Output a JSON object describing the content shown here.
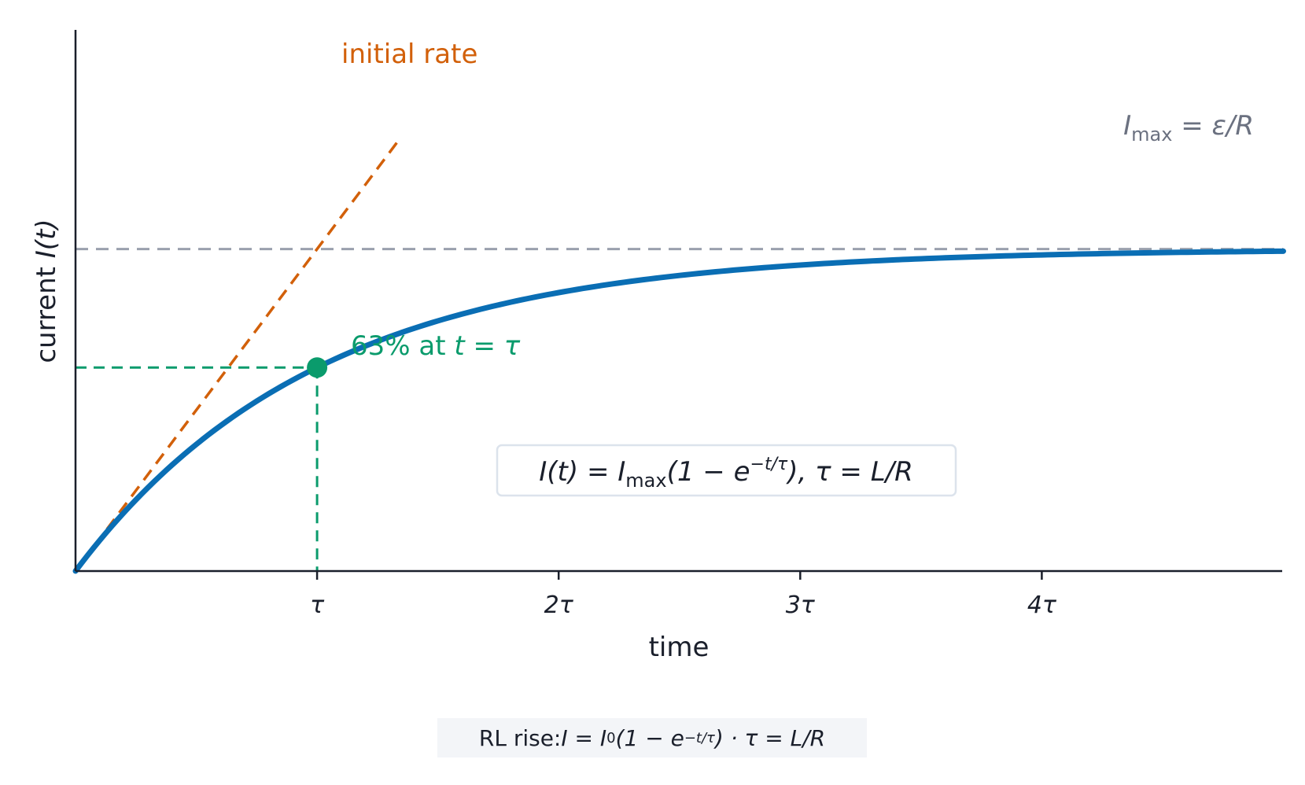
{
  "chart_data": {
    "type": "line",
    "title": "",
    "xlabel": "time",
    "ylabel": "current I(t)",
    "xlim": [
      0,
      5
    ],
    "ylim": [
      0,
      1.7
    ],
    "x_ticks": [
      1,
      2,
      3,
      4
    ],
    "x_tick_labels": [
      "τ",
      "2τ",
      "3τ",
      "4τ"
    ],
    "grid": false,
    "series": [
      {
        "kind": "curve",
        "formula": "1 - exp(-t)",
        "color": "#0a6eb4",
        "samples_x": [
          0,
          0.25,
          0.5,
          0.75,
          1,
          1.5,
          2,
          2.5,
          3,
          3.5,
          4,
          4.5,
          5
        ],
        "samples_y": [
          0,
          0.221,
          0.393,
          0.528,
          0.632,
          0.777,
          0.865,
          0.918,
          0.95,
          0.97,
          0.982,
          0.989,
          0.993
        ]
      },
      {
        "kind": "tangent",
        "label": "initial rate",
        "slope": 1,
        "x_range": [
          0.13,
          1.33
        ],
        "color": "#d2600a"
      },
      {
        "kind": "asymptote",
        "y": 1,
        "color": "#9aa0ad"
      },
      {
        "kind": "marker",
        "x": 1,
        "y": 0.632,
        "color": "#0a9b6c"
      }
    ],
    "annotations": {
      "imax_prefix": "I",
      "imax_sub": "max",
      "imax_rest": " = ε/R",
      "marker_label_prefix": "63% at ",
      "marker_label_math": "t = τ",
      "formula_a": "I(t) = I",
      "formula_sub": "max",
      "formula_b": "(1 − e",
      "formula_sup": "−t/τ",
      "formula_c": "),   τ = L/R"
    },
    "ylabel_prefix": "current ",
    "ylabel_math": "I(t)"
  },
  "caption": {
    "prefix": "RL rise: ",
    "a": "I = I",
    "sub": "0",
    "b": "(1 − e",
    "sup": "−t/τ",
    "c": ")  ·  τ = L/R"
  }
}
